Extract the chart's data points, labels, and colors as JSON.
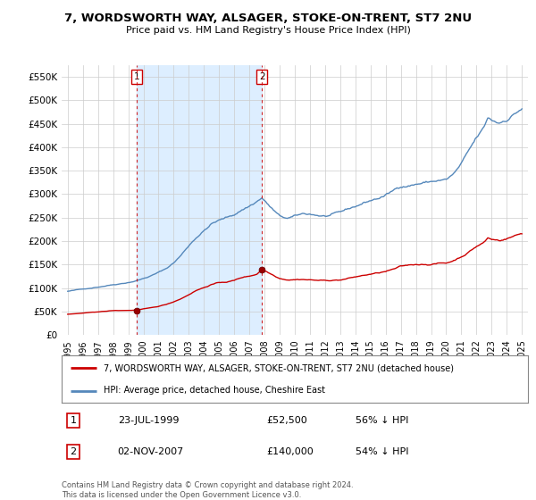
{
  "title": "7, WORDSWORTH WAY, ALSAGER, STOKE-ON-TRENT, ST7 2NU",
  "subtitle": "Price paid vs. HM Land Registry's House Price Index (HPI)",
  "ylim": [
    0,
    575000
  ],
  "yticks": [
    0,
    50000,
    100000,
    150000,
    200000,
    250000,
    300000,
    350000,
    400000,
    450000,
    500000,
    550000
  ],
  "ytick_labels": [
    "£0",
    "£50K",
    "£100K",
    "£150K",
    "£200K",
    "£250K",
    "£300K",
    "£350K",
    "£400K",
    "£450K",
    "£500K",
    "£550K"
  ],
  "legend_line1": "7, WORDSWORTH WAY, ALSAGER, STOKE-ON-TRENT, ST7 2NU (detached house)",
  "legend_line2": "HPI: Average price, detached house, Cheshire East",
  "sale1_date": "23-JUL-1999",
  "sale1_price": "£52,500",
  "sale1_hpi": "56% ↓ HPI",
  "sale2_date": "02-NOV-2007",
  "sale2_price": "£140,000",
  "sale2_hpi": "54% ↓ HPI",
  "footer": "Contains HM Land Registry data © Crown copyright and database right 2024.\nThis data is licensed under the Open Government Licence v3.0.",
  "line_color_red": "#cc0000",
  "line_color_blue": "#5588bb",
  "shade_color": "#ddeeff",
  "marker_color_red": "#880000",
  "bg_color": "#ffffff",
  "grid_color": "#cccccc",
  "sale1_year": 1999.56,
  "sale2_year": 2007.84,
  "sale1_value": 52500,
  "sale2_value": 140000
}
